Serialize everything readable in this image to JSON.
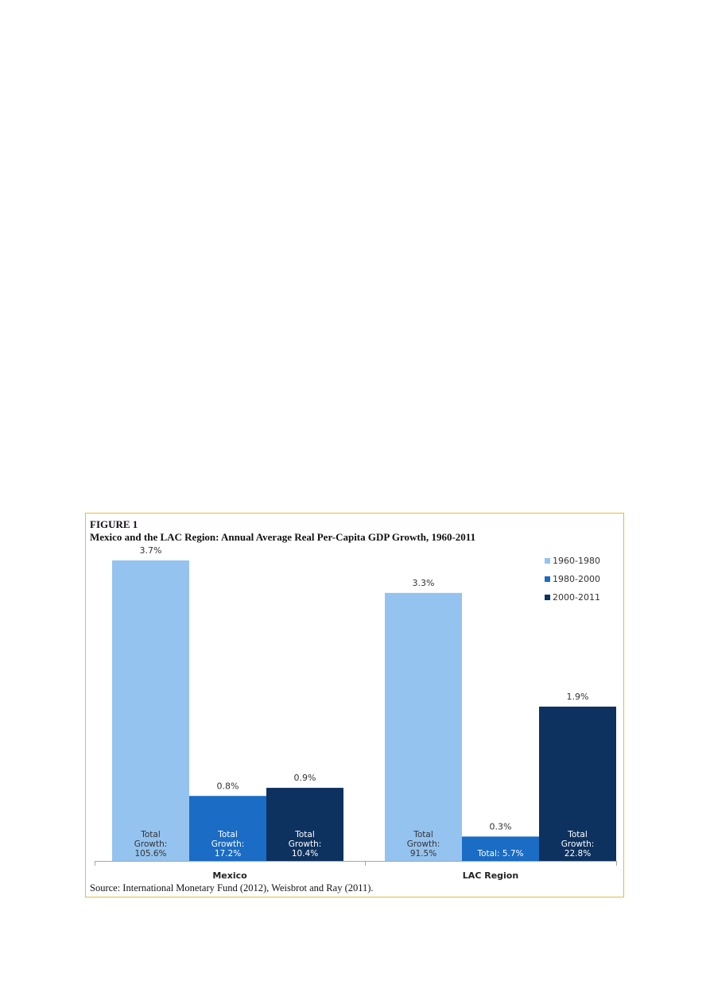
{
  "figure": {
    "label": "FIGURE 1",
    "title": "Mexico and the LAC Region: Annual Average Real Per-Capita GDP Growth, 1960-2011",
    "source": "Source: International Monetary Fund (2012), Weisbrot and Ray (2011)."
  },
  "chart_data": {
    "type": "bar",
    "title": "Mexico and the LAC Region: Annual Average Real Per-Capita GDP Growth, 1960-2011",
    "categories": [
      "Mexico",
      "LAC Region"
    ],
    "xlabel": "",
    "ylabel": "",
    "ylim": [
      0,
      3.7
    ],
    "grid": false,
    "legend_position": "top-right",
    "series": [
      {
        "name": "1960-1980",
        "color": "#95c3ef",
        "values": [
          3.7,
          3.3
        ],
        "value_labels": [
          "3.7%",
          "3.3%"
        ],
        "total_labels": [
          [
            "Total",
            "Growth:",
            "105.6%"
          ],
          [
            "Total",
            "Growth:",
            "91.5%"
          ]
        ]
      },
      {
        "name": "1980-2000",
        "color": "#1a6cc4",
        "values": [
          0.8,
          0.3
        ],
        "value_labels": [
          "0.8%",
          "0.3%"
        ],
        "total_labels": [
          [
            "Total",
            "Growth:",
            "17.2%"
          ],
          [
            "Total: 5.7%"
          ]
        ]
      },
      {
        "name": "2000-2011",
        "color": "#0d3260",
        "values": [
          0.9,
          1.9
        ],
        "value_labels": [
          "0.9%",
          "1.9%"
        ],
        "total_labels": [
          [
            "Total",
            "Growth:",
            "10.4%"
          ],
          [
            "Total",
            "Growth:",
            "22.8%"
          ]
        ]
      }
    ]
  }
}
